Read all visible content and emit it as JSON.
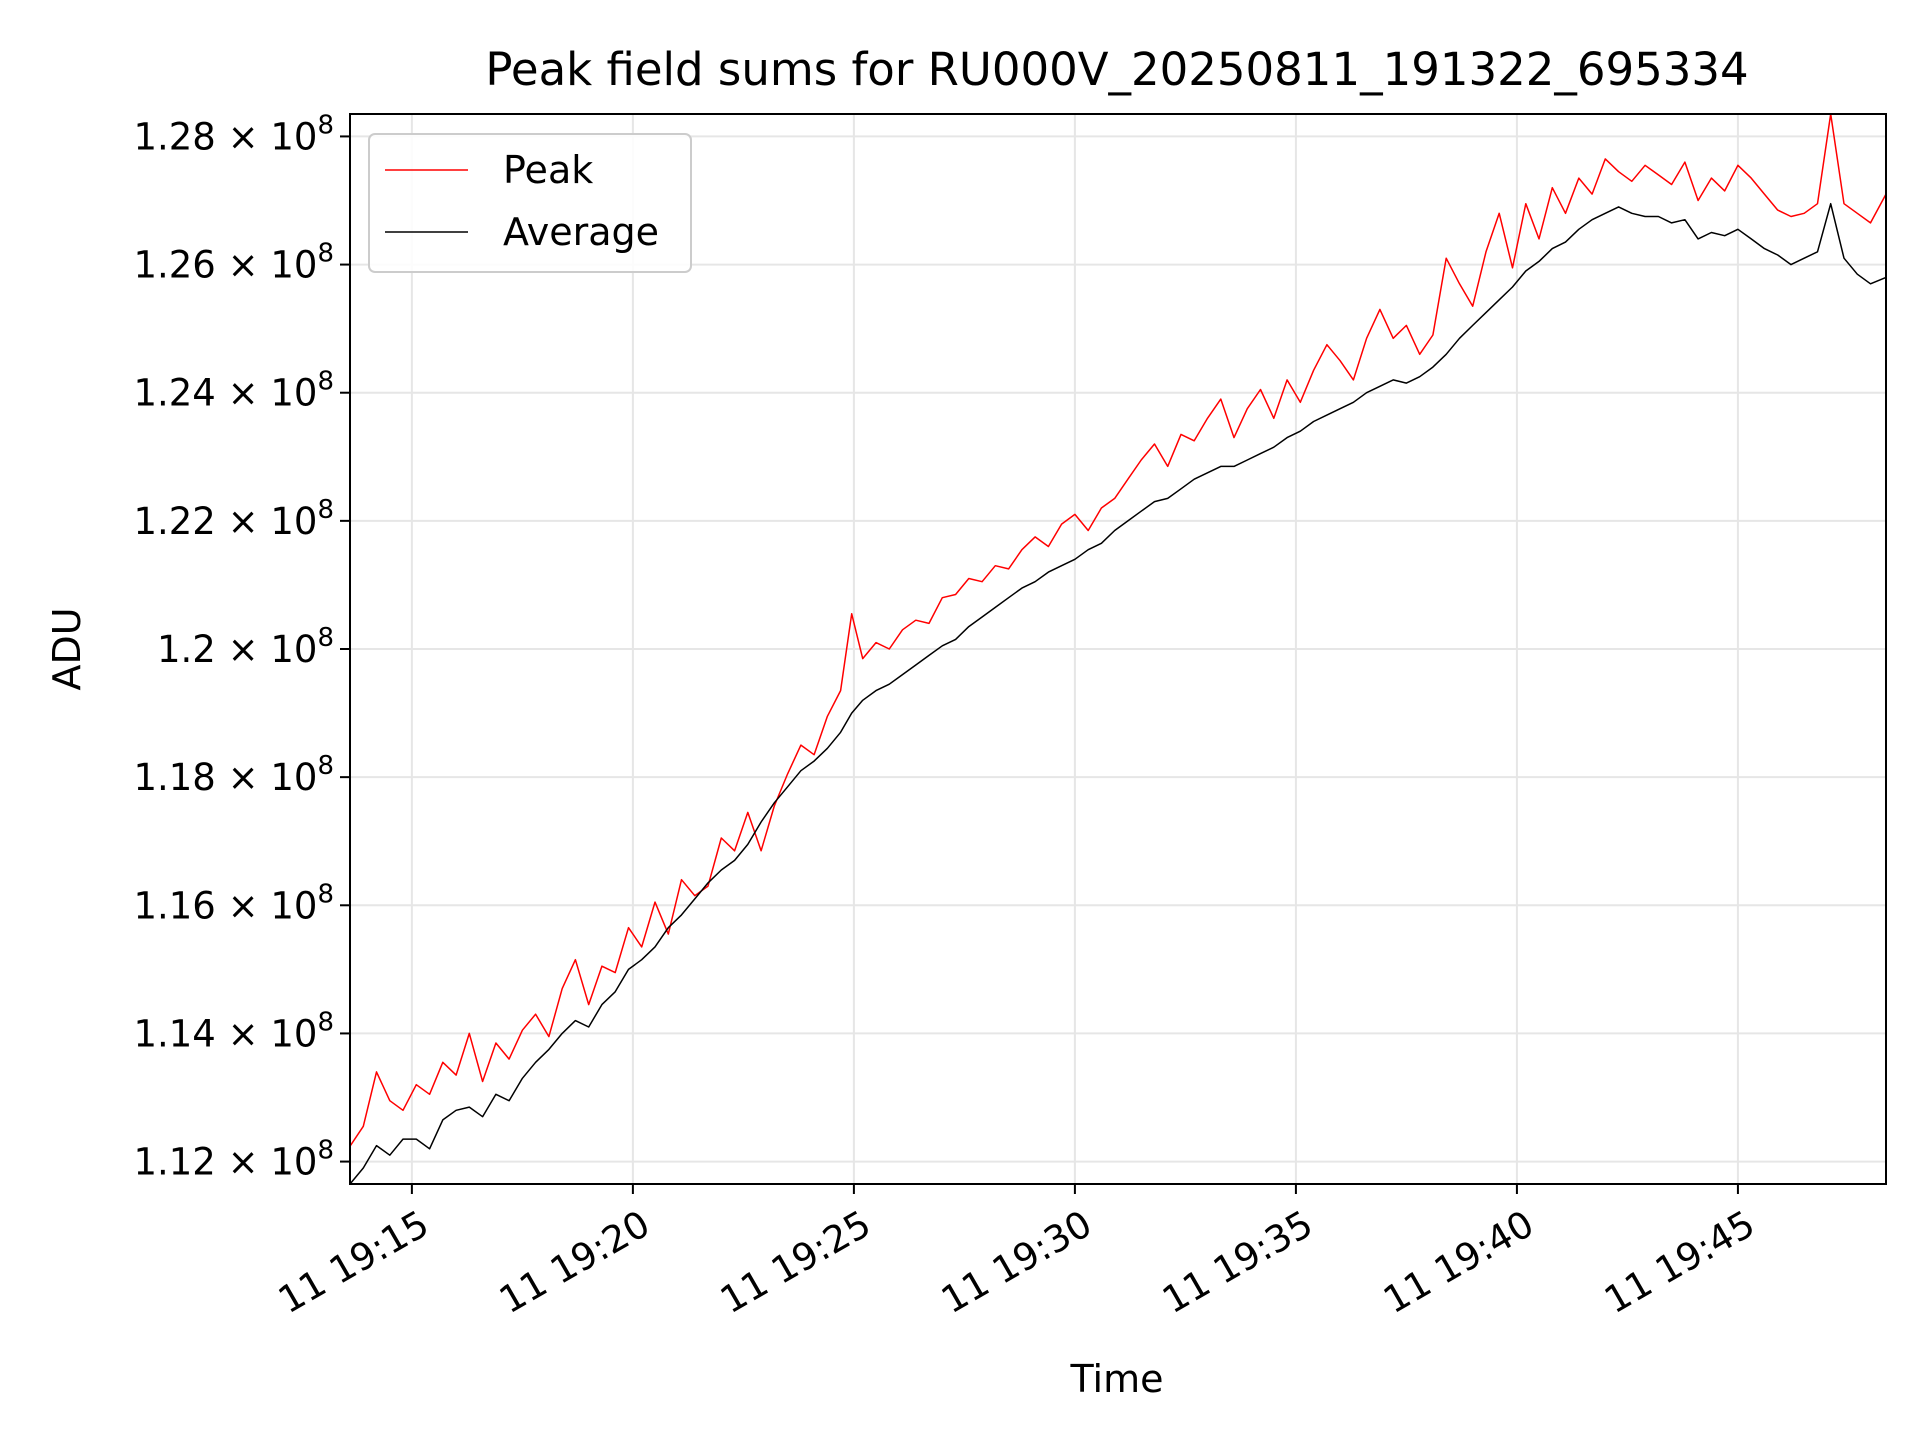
{
  "chart_data": {
    "type": "line",
    "title": "Peak field sums for RU000V_20250811_191322_695334",
    "xlabel": "Time",
    "ylabel": "ADU",
    "x_unit": "minutes after 19:00 on day 11",
    "xlim": [
      13.6,
      48.35
    ],
    "ylim": [
      111.65,
      128.35
    ],
    "y_scale_note": "values in units of 1e6 ADU",
    "x_ticks": [
      {
        "value": 15,
        "label": "11 19:15"
      },
      {
        "value": 20,
        "label": "11 19:20"
      },
      {
        "value": 25,
        "label": "11 19:25"
      },
      {
        "value": 30,
        "label": "11 19:30"
      },
      {
        "value": 35,
        "label": "11 19:35"
      },
      {
        "value": 40,
        "label": "11 19:40"
      },
      {
        "value": 45,
        "label": "11 19:45"
      }
    ],
    "y_ticks": [
      {
        "value": 112,
        "mantissa": "1.12",
        "exp": "8"
      },
      {
        "value": 114,
        "mantissa": "1.14",
        "exp": "8"
      },
      {
        "value": 116,
        "mantissa": "1.16",
        "exp": "8"
      },
      {
        "value": 118,
        "mantissa": "1.18",
        "exp": "8"
      },
      {
        "value": 120,
        "mantissa": "1.2",
        "exp": "8"
      },
      {
        "value": 122,
        "mantissa": "1.22",
        "exp": "8"
      },
      {
        "value": 124,
        "mantissa": "1.24",
        "exp": "8"
      },
      {
        "value": 126,
        "mantissa": "1.26",
        "exp": "8"
      },
      {
        "value": 128,
        "mantissa": "1.28",
        "exp": "8"
      }
    ],
    "grid": true,
    "legend": {
      "position": "upper-left",
      "entries": [
        "Peak",
        "Average"
      ]
    },
    "series": [
      {
        "name": "Peak",
        "color": "#ff0000",
        "points": [
          [
            13.6,
            112.24
          ],
          [
            13.9,
            112.55
          ],
          [
            14.2,
            113.4
          ],
          [
            14.5,
            112.95
          ],
          [
            14.8,
            112.8
          ],
          [
            15.1,
            113.2
          ],
          [
            15.4,
            113.05
          ],
          [
            15.7,
            113.55
          ],
          [
            16.0,
            113.35
          ],
          [
            16.3,
            114.0
          ],
          [
            16.6,
            113.25
          ],
          [
            16.9,
            113.85
          ],
          [
            17.2,
            113.6
          ],
          [
            17.5,
            114.05
          ],
          [
            17.8,
            114.3
          ],
          [
            18.1,
            113.95
          ],
          [
            18.4,
            114.7
          ],
          [
            18.7,
            115.15
          ],
          [
            19.0,
            114.45
          ],
          [
            19.3,
            115.05
          ],
          [
            19.6,
            114.95
          ],
          [
            19.9,
            115.65
          ],
          [
            20.2,
            115.35
          ],
          [
            20.5,
            116.05
          ],
          [
            20.8,
            115.55
          ],
          [
            21.1,
            116.4
          ],
          [
            21.4,
            116.15
          ],
          [
            21.7,
            116.3
          ],
          [
            22.0,
            117.05
          ],
          [
            22.3,
            116.85
          ],
          [
            22.6,
            117.45
          ],
          [
            22.9,
            116.85
          ],
          [
            23.2,
            117.55
          ],
          [
            23.5,
            118.05
          ],
          [
            23.8,
            118.5
          ],
          [
            24.1,
            118.35
          ],
          [
            24.4,
            118.95
          ],
          [
            24.7,
            119.35
          ],
          [
            24.95,
            120.55
          ],
          [
            25.2,
            119.85
          ],
          [
            25.5,
            120.1
          ],
          [
            25.8,
            120.0
          ],
          [
            26.1,
            120.3
          ],
          [
            26.4,
            120.45
          ],
          [
            26.7,
            120.4
          ],
          [
            27.0,
            120.8
          ],
          [
            27.3,
            120.85
          ],
          [
            27.6,
            121.1
          ],
          [
            27.9,
            121.05
          ],
          [
            28.2,
            121.3
          ],
          [
            28.5,
            121.25
          ],
          [
            28.8,
            121.55
          ],
          [
            29.1,
            121.75
          ],
          [
            29.4,
            121.6
          ],
          [
            29.7,
            121.95
          ],
          [
            30.0,
            122.1
          ],
          [
            30.3,
            121.85
          ],
          [
            30.6,
            122.2
          ],
          [
            30.9,
            122.35
          ],
          [
            31.2,
            122.65
          ],
          [
            31.5,
            122.95
          ],
          [
            31.8,
            123.2
          ],
          [
            32.1,
            122.85
          ],
          [
            32.4,
            123.35
          ],
          [
            32.7,
            123.25
          ],
          [
            33.0,
            123.6
          ],
          [
            33.3,
            123.9
          ],
          [
            33.6,
            123.3
          ],
          [
            33.9,
            123.75
          ],
          [
            34.2,
            124.05
          ],
          [
            34.5,
            123.6
          ],
          [
            34.8,
            124.2
          ],
          [
            35.1,
            123.85
          ],
          [
            35.4,
            124.35
          ],
          [
            35.7,
            124.75
          ],
          [
            36.0,
            124.5
          ],
          [
            36.3,
            124.2
          ],
          [
            36.6,
            124.85
          ],
          [
            36.9,
            125.3
          ],
          [
            37.2,
            124.85
          ],
          [
            37.5,
            125.05
          ],
          [
            37.8,
            124.6
          ],
          [
            38.1,
            124.9
          ],
          [
            38.4,
            126.1
          ],
          [
            38.7,
            125.7
          ],
          [
            39.0,
            125.35
          ],
          [
            39.3,
            126.2
          ],
          [
            39.6,
            126.8
          ],
          [
            39.9,
            125.95
          ],
          [
            40.2,
            126.95
          ],
          [
            40.5,
            126.4
          ],
          [
            40.8,
            127.2
          ],
          [
            41.1,
            126.8
          ],
          [
            41.4,
            127.35
          ],
          [
            41.7,
            127.1
          ],
          [
            42.0,
            127.65
          ],
          [
            42.3,
            127.45
          ],
          [
            42.6,
            127.3
          ],
          [
            42.9,
            127.55
          ],
          [
            43.2,
            127.4
          ],
          [
            43.5,
            127.25
          ],
          [
            43.8,
            127.6
          ],
          [
            44.1,
            127.0
          ],
          [
            44.4,
            127.35
          ],
          [
            44.7,
            127.15
          ],
          [
            45.0,
            127.55
          ],
          [
            45.3,
            127.35
          ],
          [
            45.6,
            127.1
          ],
          [
            45.9,
            126.85
          ],
          [
            46.2,
            126.75
          ],
          [
            46.5,
            126.8
          ],
          [
            46.8,
            126.95
          ],
          [
            47.1,
            128.35
          ],
          [
            47.4,
            126.95
          ],
          [
            47.7,
            126.8
          ],
          [
            48.0,
            126.65
          ],
          [
            48.35,
            127.1
          ]
        ]
      },
      {
        "name": "Average",
        "color": "#000000",
        "points": [
          [
            13.6,
            111.65
          ],
          [
            13.9,
            111.9
          ],
          [
            14.2,
            112.25
          ],
          [
            14.5,
            112.1
          ],
          [
            14.8,
            112.35
          ],
          [
            15.1,
            112.35
          ],
          [
            15.4,
            112.2
          ],
          [
            15.7,
            112.65
          ],
          [
            16.0,
            112.8
          ],
          [
            16.3,
            112.85
          ],
          [
            16.6,
            112.7
          ],
          [
            16.9,
            113.05
          ],
          [
            17.2,
            112.95
          ],
          [
            17.5,
            113.3
          ],
          [
            17.8,
            113.55
          ],
          [
            18.1,
            113.75
          ],
          [
            18.4,
            114.0
          ],
          [
            18.7,
            114.2
          ],
          [
            19.0,
            114.1
          ],
          [
            19.3,
            114.45
          ],
          [
            19.6,
            114.65
          ],
          [
            19.9,
            115.0
          ],
          [
            20.2,
            115.15
          ],
          [
            20.5,
            115.35
          ],
          [
            20.8,
            115.65
          ],
          [
            21.1,
            115.85
          ],
          [
            21.4,
            116.1
          ],
          [
            21.7,
            116.35
          ],
          [
            22.0,
            116.55
          ],
          [
            22.3,
            116.7
          ],
          [
            22.6,
            116.95
          ],
          [
            22.9,
            117.3
          ],
          [
            23.2,
            117.6
          ],
          [
            23.5,
            117.85
          ],
          [
            23.8,
            118.1
          ],
          [
            24.1,
            118.25
          ],
          [
            24.4,
            118.45
          ],
          [
            24.7,
            118.7
          ],
          [
            24.95,
            119.0
          ],
          [
            25.2,
            119.2
          ],
          [
            25.5,
            119.35
          ],
          [
            25.8,
            119.45
          ],
          [
            26.1,
            119.6
          ],
          [
            26.4,
            119.75
          ],
          [
            26.7,
            119.9
          ],
          [
            27.0,
            120.05
          ],
          [
            27.3,
            120.15
          ],
          [
            27.6,
            120.35
          ],
          [
            27.9,
            120.5
          ],
          [
            28.2,
            120.65
          ],
          [
            28.5,
            120.8
          ],
          [
            28.8,
            120.95
          ],
          [
            29.1,
            121.05
          ],
          [
            29.4,
            121.2
          ],
          [
            29.7,
            121.3
          ],
          [
            30.0,
            121.4
          ],
          [
            30.3,
            121.55
          ],
          [
            30.6,
            121.65
          ],
          [
            30.9,
            121.85
          ],
          [
            31.2,
            122.0
          ],
          [
            31.5,
            122.15
          ],
          [
            31.8,
            122.3
          ],
          [
            32.1,
            122.35
          ],
          [
            32.4,
            122.5
          ],
          [
            32.7,
            122.65
          ],
          [
            33.0,
            122.75
          ],
          [
            33.3,
            122.85
          ],
          [
            33.6,
            122.85
          ],
          [
            33.9,
            122.95
          ],
          [
            34.2,
            123.05
          ],
          [
            34.5,
            123.15
          ],
          [
            34.8,
            123.3
          ],
          [
            35.1,
            123.4
          ],
          [
            35.4,
            123.55
          ],
          [
            35.7,
            123.65
          ],
          [
            36.0,
            123.75
          ],
          [
            36.3,
            123.85
          ],
          [
            36.6,
            124.0
          ],
          [
            36.9,
            124.1
          ],
          [
            37.2,
            124.2
          ],
          [
            37.5,
            124.15
          ],
          [
            37.8,
            124.25
          ],
          [
            38.1,
            124.4
          ],
          [
            38.4,
            124.6
          ],
          [
            38.7,
            124.85
          ],
          [
            39.0,
            125.05
          ],
          [
            39.3,
            125.25
          ],
          [
            39.6,
            125.45
          ],
          [
            39.9,
            125.65
          ],
          [
            40.2,
            125.9
          ],
          [
            40.5,
            126.05
          ],
          [
            40.8,
            126.25
          ],
          [
            41.1,
            126.35
          ],
          [
            41.4,
            126.55
          ],
          [
            41.7,
            126.7
          ],
          [
            42.0,
            126.8
          ],
          [
            42.3,
            126.9
          ],
          [
            42.6,
            126.8
          ],
          [
            42.9,
            126.75
          ],
          [
            43.2,
            126.75
          ],
          [
            43.5,
            126.65
          ],
          [
            43.8,
            126.7
          ],
          [
            44.1,
            126.4
          ],
          [
            44.4,
            126.5
          ],
          [
            44.7,
            126.45
          ],
          [
            45.0,
            126.55
          ],
          [
            45.3,
            126.4
          ],
          [
            45.6,
            126.25
          ],
          [
            45.9,
            126.15
          ],
          [
            46.2,
            126.0
          ],
          [
            46.5,
            126.1
          ],
          [
            46.8,
            126.2
          ],
          [
            47.1,
            126.95
          ],
          [
            47.4,
            126.1
          ],
          [
            47.7,
            125.85
          ],
          [
            48.0,
            125.7
          ],
          [
            48.35,
            125.8
          ]
        ]
      }
    ]
  }
}
